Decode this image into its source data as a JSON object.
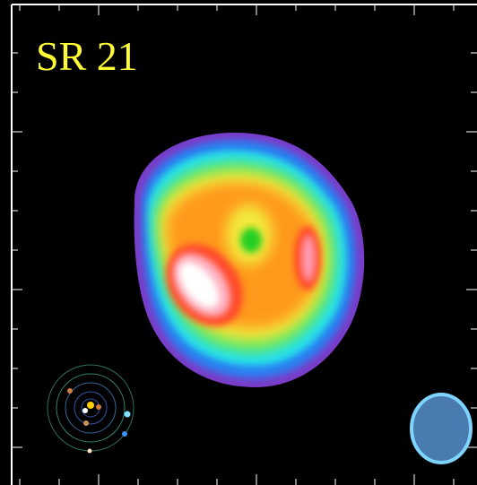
{
  "title": "SR 21"
}
